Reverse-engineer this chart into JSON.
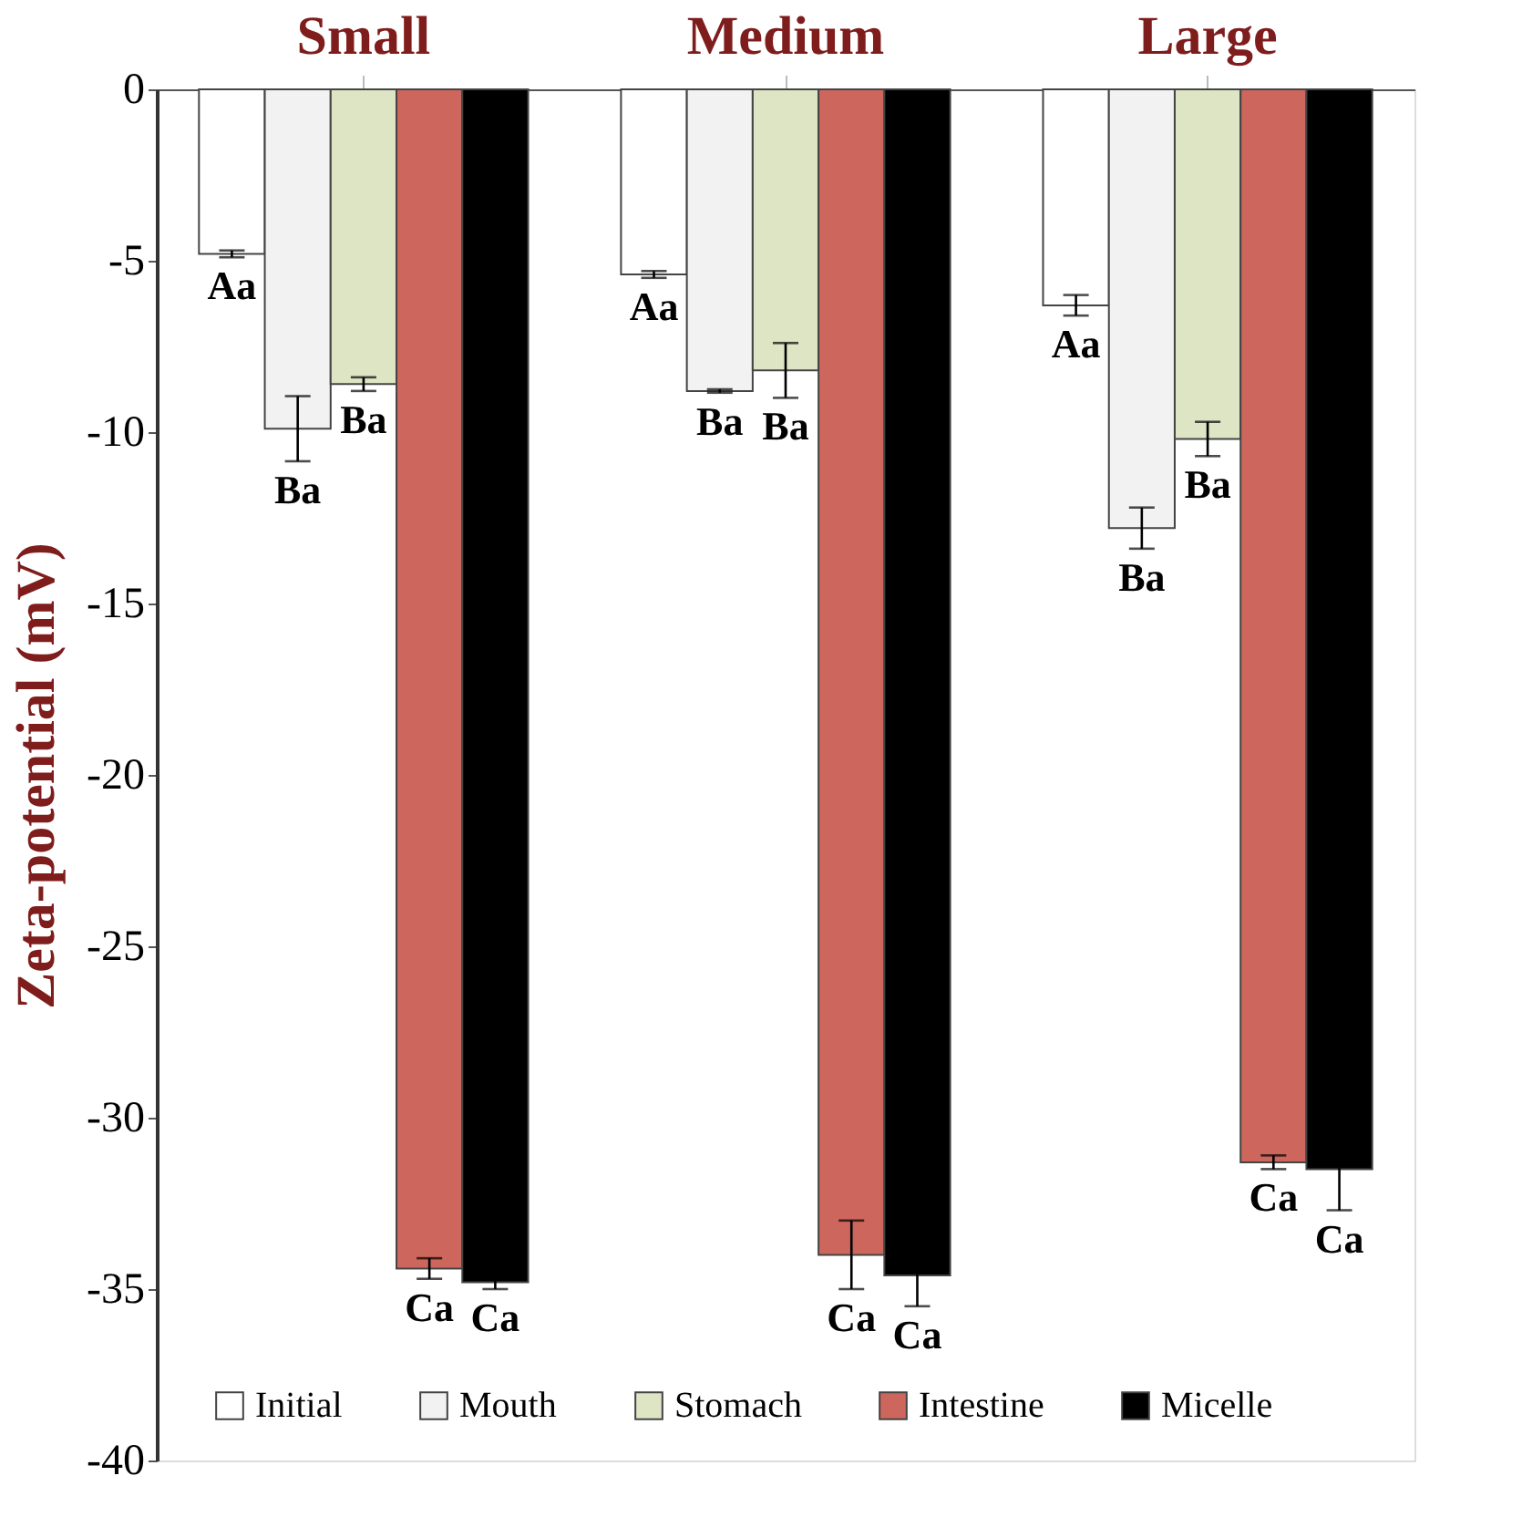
{
  "chart_data": {
    "type": "bar",
    "ylabel": "Zeta-potential (mV)",
    "categories": [
      "Small",
      "Medium",
      "Large"
    ],
    "series": [
      {
        "name": "Initial",
        "color": "#ffffff",
        "values": [
          -4.8,
          -5.4,
          -6.3
        ],
        "errors": [
          0.1,
          0.1,
          0.3
        ],
        "value_labels": [
          "Aa",
          "Aa",
          "Aa"
        ]
      },
      {
        "name": "Mouth",
        "color": "#f2f2f2",
        "values": [
          -9.9,
          -8.8,
          -12.8
        ],
        "errors": [
          0.95,
          0.05,
          0.6
        ],
        "value_labels": [
          "Ba",
          "Ba",
          "Ba"
        ]
      },
      {
        "name": "Stomach",
        "color": "#dde5c4",
        "values": [
          -8.6,
          -8.2,
          -10.2
        ],
        "errors": [
          0.2,
          0.8,
          0.5
        ],
        "value_labels": [
          "Ba",
          "Ba",
          "Ba"
        ]
      },
      {
        "name": "Intestine",
        "color": "#cd665c",
        "values": [
          -34.4,
          -34.0,
          -31.3
        ],
        "errors": [
          0.3,
          1.0,
          0.2
        ],
        "value_labels": [
          "Ca",
          "Ca",
          "Ca"
        ]
      },
      {
        "name": "Micelle",
        "color": "#000000",
        "values": [
          -34.8,
          -34.6,
          -31.5
        ],
        "errors": [
          0.2,
          0.9,
          1.2
        ],
        "value_labels": [
          "Ca",
          "Ca",
          "Ca"
        ]
      }
    ],
    "ylim": [
      -40,
      0
    ],
    "yticks": [
      0,
      -5,
      -10,
      -15,
      -20,
      -25,
      -30,
      -35,
      -40
    ],
    "grid": false,
    "legend": "bottom"
  }
}
